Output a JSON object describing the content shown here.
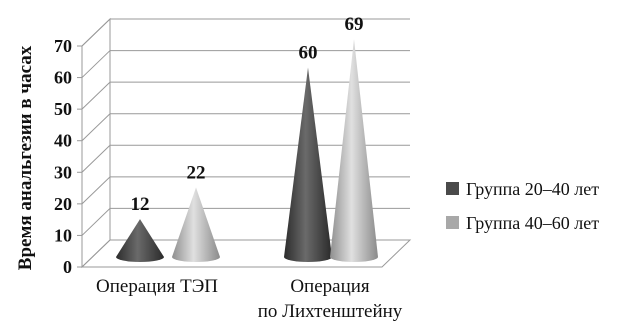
{
  "chart_data": {
    "type": "bar",
    "subtype": "3d-cone",
    "title": "",
    "xlabel": "",
    "ylabel": "Время анальгезии в часах",
    "ylim": [
      0,
      70
    ],
    "yticks": [
      0,
      10,
      20,
      30,
      40,
      50,
      60,
      70
    ],
    "grid": true,
    "legend_position": "right",
    "categories": [
      [
        "Операция ТЭП"
      ],
      [
        "Операция",
        "по Лихтенштейну"
      ]
    ],
    "series": [
      {
        "name": "Группа 20–40 лет",
        "color": "#4a4a4a",
        "values": [
          12,
          60
        ]
      },
      {
        "name": "Группа 40–60 лет",
        "color": "#a8a8a8",
        "values": [
          22,
          69
        ]
      }
    ]
  }
}
